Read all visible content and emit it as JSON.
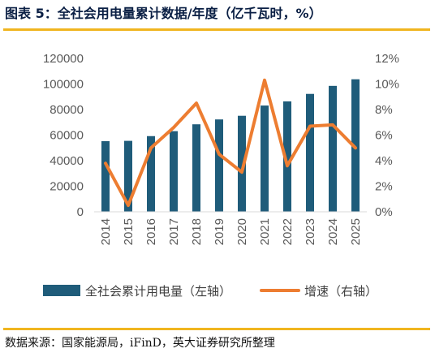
{
  "header": {
    "title": "图表 5：全社会用电量累计数据/年度（亿千瓦时，%）"
  },
  "footer": {
    "source": "数据来源：国家能源局，iFinD，英大证券研究所整理"
  },
  "chart_data": {
    "type": "bar+line",
    "categories": [
      "2014",
      "2015",
      "2016",
      "2017",
      "2018",
      "2019",
      "2020",
      "2021",
      "2022",
      "2023",
      "2024",
      "2025"
    ],
    "series": [
      {
        "name": "全社会累计用电量（左轴）",
        "type": "bar",
        "axis": "left",
        "color": "#1f5c7a",
        "values": [
          55233,
          55500,
          59198,
          63077,
          68449,
          72255,
          75110,
          83128,
          86372,
          92241,
          98521,
          103682
        ]
      },
      {
        "name": "增速（右轴）",
        "type": "line",
        "axis": "right",
        "color": "#ed7d31",
        "values": [
          3.8,
          0.5,
          5.0,
          6.6,
          8.5,
          4.5,
          3.1,
          10.3,
          3.6,
          6.7,
          6.8,
          5.0
        ]
      }
    ],
    "y_left": {
      "range": [
        0,
        120000
      ],
      "ticks": [
        "0",
        "20000",
        "40000",
        "60000",
        "80000",
        "100000",
        "120000"
      ]
    },
    "y_right": {
      "range": [
        0,
        12
      ],
      "ticks": [
        "0%",
        "2%",
        "4%",
        "6%",
        "8%",
        "10%",
        "12%"
      ]
    },
    "grid": false,
    "legend_position": "bottom"
  }
}
